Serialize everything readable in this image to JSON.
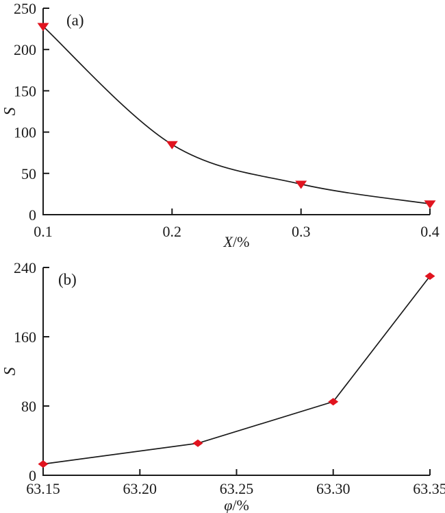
{
  "figure": {
    "background": "#ffffff",
    "axis_color": "#1a1a1a",
    "text_color": "#1a1a1a"
  },
  "chart_data": [
    {
      "id": "a",
      "type": "line",
      "panel_label": "(a)",
      "x": [
        0.1,
        0.2,
        0.3,
        0.4
      ],
      "y": [
        228,
        85,
        37,
        13
      ],
      "xlabel": "X/%",
      "ylabel": "S",
      "xlim": [
        0.1,
        0.4
      ],
      "ylim": [
        0,
        250
      ],
      "xticks": [
        0.1,
        0.2,
        0.3,
        0.4
      ],
      "xtick_labels": [
        "0.1",
        "0.2",
        "0.3",
        "0.4"
      ],
      "yticks": [
        0,
        50,
        100,
        150,
        200,
        250
      ],
      "ytick_labels": [
        "0",
        "50",
        "100",
        "150",
        "200",
        "250"
      ],
      "marker": "triangle-down",
      "marker_color": "#e1141f",
      "line_color": "#1a1a1a",
      "smooth": true,
      "grid": false,
      "legend": "none"
    },
    {
      "id": "b",
      "type": "line",
      "panel_label": "(b)",
      "x": [
        63.15,
        63.23,
        63.3,
        63.35
      ],
      "y": [
        13,
        37,
        85,
        230
      ],
      "xlabel": "φ/%",
      "ylabel": "S",
      "xlim": [
        63.15,
        63.35
      ],
      "ylim": [
        0,
        240
      ],
      "xticks": [
        63.15,
        63.2,
        63.25,
        63.3,
        63.35
      ],
      "xtick_labels": [
        "63.15",
        "63.20",
        "63.25",
        "63.30",
        "63.35"
      ],
      "yticks": [
        0,
        80,
        160,
        240
      ],
      "ytick_labels": [
        "0",
        "80",
        "160",
        "240"
      ],
      "marker": "diamond",
      "marker_color": "#e1141f",
      "line_color": "#1a1a1a",
      "smooth": false,
      "grid": false,
      "legend": "none"
    }
  ]
}
